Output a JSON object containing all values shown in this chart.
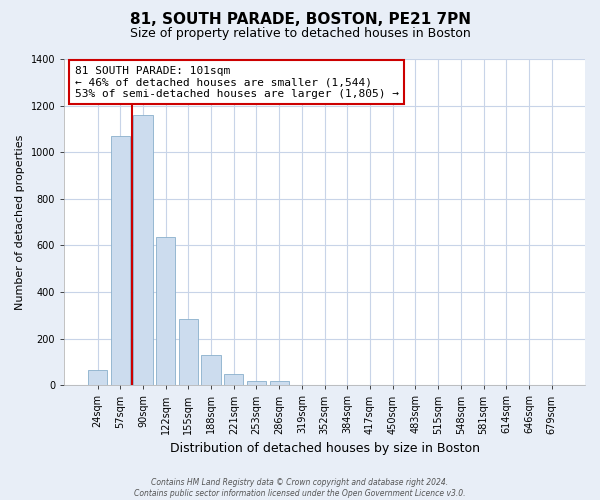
{
  "title": "81, SOUTH PARADE, BOSTON, PE21 7PN",
  "subtitle": "Size of property relative to detached houses in Boston",
  "xlabel": "Distribution of detached houses by size in Boston",
  "ylabel": "Number of detached properties",
  "bar_labels": [
    "24sqm",
    "57sqm",
    "90sqm",
    "122sqm",
    "155sqm",
    "188sqm",
    "221sqm",
    "253sqm",
    "286sqm",
    "319sqm",
    "352sqm",
    "384sqm",
    "417sqm",
    "450sqm",
    "483sqm",
    "515sqm",
    "548sqm",
    "581sqm",
    "614sqm",
    "646sqm",
    "679sqm"
  ],
  "bar_values": [
    65,
    1070,
    1160,
    635,
    285,
    130,
    48,
    20,
    20,
    0,
    0,
    0,
    0,
    0,
    0,
    0,
    0,
    0,
    0,
    0,
    0
  ],
  "bar_color": "#ccdcee",
  "bar_edge_color": "#8ab0cc",
  "vline_color": "#cc0000",
  "vline_x": 1.5,
  "annotation_text_line1": "81 SOUTH PARADE: 101sqm",
  "annotation_text_line2": "← 46% of detached houses are smaller (1,544)",
  "annotation_text_line3": "53% of semi-detached houses are larger (1,805) →",
  "annotation_box_facecolor": "#ffffff",
  "annotation_box_edgecolor": "#cc0000",
  "ylim": [
    0,
    1400
  ],
  "yticks": [
    0,
    200,
    400,
    600,
    800,
    1000,
    1200,
    1400
  ],
  "plot_facecolor": "#ffffff",
  "fig_facecolor": "#e8eef7",
  "grid_color": "#c8d4e8",
  "footer_line1": "Contains HM Land Registry data © Crown copyright and database right 2024.",
  "footer_line2": "Contains public sector information licensed under the Open Government Licence v3.0.",
  "title_fontsize": 11,
  "subtitle_fontsize": 9,
  "ylabel_fontsize": 8,
  "xlabel_fontsize": 9,
  "tick_fontsize": 7,
  "ann_fontsize": 8,
  "footer_fontsize": 5.5
}
